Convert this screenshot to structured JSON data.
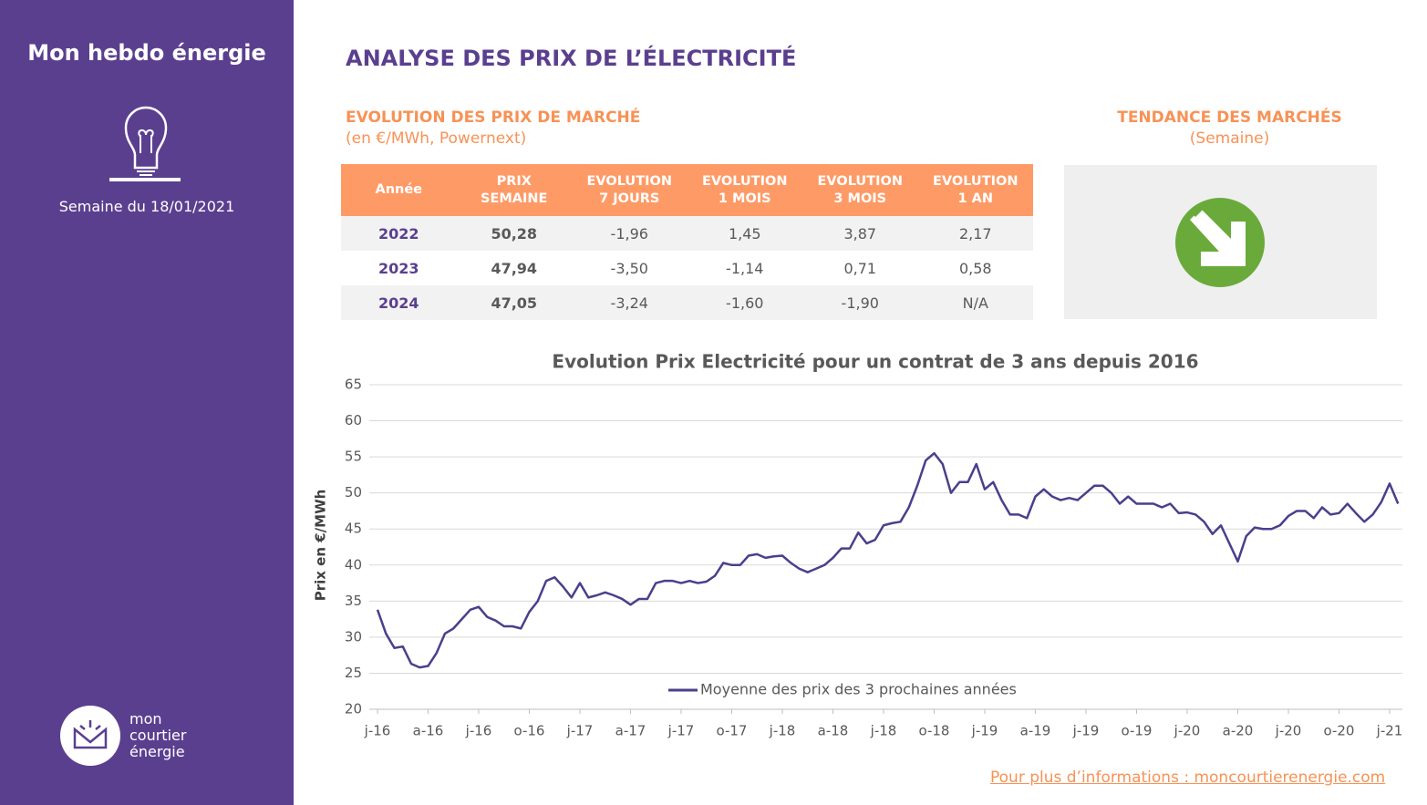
{
  "sidebar": {
    "title": "Mon hebdo énergie",
    "week": "Semaine du 18/01/2021",
    "logo": [
      "mon",
      "courtier",
      "énergie"
    ]
  },
  "header": {
    "title": "ANALYSE DES PRIX DE L’ÉLECTRICITÉ"
  },
  "market": {
    "title": "EVOLUTION DES PRIX DE MARCHÉ",
    "subtitle": "(en €/MWh, Powernext)"
  },
  "table": {
    "columns": [
      "Année",
      "PRIX\nSEMAINE",
      "EVOLUTION\n7 JOURS",
      "EVOLUTION\n1 MOIS",
      "EVOLUTION\n3 MOIS",
      "EVOLUTION\n1 AN"
    ],
    "rows": [
      [
        "2022",
        "50,28",
        "-1,96",
        "1,45",
        "3,87",
        "2,17"
      ],
      [
        "2023",
        "47,94",
        "-3,50",
        "-1,14",
        "0,71",
        "0,58"
      ],
      [
        "2024",
        "47,05",
        "-3,24",
        "-1,60",
        "-1,90",
        "N/A"
      ]
    ]
  },
  "trend": {
    "title": "TENDANCE DES MARCHÉS",
    "subtitle": "(Semaine)"
  },
  "chart_data": {
    "type": "line",
    "title": "Evolution Prix Electricité pour un contrat de 3 ans depuis 2016",
    "y_label": "Prix en €/MWh",
    "categories": [
      "j-16",
      null,
      null,
      null,
      null,
      null,
      "a-16",
      null,
      null,
      null,
      null,
      null,
      "j-16",
      null,
      null,
      null,
      null,
      null,
      "o-16",
      null,
      null,
      null,
      null,
      null,
      "j-17",
      null,
      null,
      null,
      null,
      null,
      "a-17",
      null,
      null,
      null,
      null,
      null,
      "j-17",
      null,
      null,
      null,
      null,
      null,
      "o-17",
      null,
      null,
      null,
      null,
      null,
      "j-18",
      null,
      null,
      null,
      null,
      null,
      "a-18",
      null,
      null,
      null,
      null,
      null,
      "j-18",
      null,
      null,
      null,
      null,
      null,
      "o-18",
      null,
      null,
      null,
      null,
      null,
      "j-19",
      null,
      null,
      null,
      null,
      null,
      "a-19",
      null,
      null,
      null,
      null,
      null,
      "j-19",
      null,
      null,
      null,
      null,
      null,
      "o-19",
      null,
      null,
      null,
      null,
      null,
      "j-20",
      null,
      null,
      null,
      null,
      null,
      "a-20",
      null,
      null,
      null,
      null,
      null,
      "j-20",
      null,
      null,
      null,
      null,
      null,
      "o-20",
      null,
      null,
      null,
      null,
      null,
      "j-21",
      null
    ],
    "series": [
      {
        "name": "Moyenne des prix des 3 prochaines années",
        "color": "#4b3f8c",
        "values": [
          33.8,
          30.5,
          28.5,
          28.7,
          26.3,
          25.8,
          26,
          27.8,
          30.5,
          31.2,
          32.5,
          33.8,
          34.2,
          32.8,
          32.3,
          31.5,
          31.5,
          31.2,
          33.5,
          35,
          37.8,
          38.3,
          37,
          35.5,
          37.5,
          35.5,
          35.8,
          36.2,
          35.8,
          35.3,
          34.5,
          35.3,
          35.3,
          37.5,
          37.8,
          37.8,
          37.5,
          37.8,
          37.5,
          37.7,
          38.5,
          40.3,
          40,
          40,
          41.3,
          41.5,
          41,
          41.2,
          41.3,
          40.3,
          39.5,
          39,
          39.5,
          40,
          41,
          42.3,
          42.3,
          44.5,
          43,
          43.5,
          45.5,
          45.8,
          46,
          48,
          51,
          54.5,
          55.5,
          54,
          50,
          51.5,
          51.5,
          54,
          50.5,
          51.5,
          49,
          47,
          47,
          46.5,
          49.5,
          50.5,
          49.5,
          49,
          49.3,
          49,
          50,
          51,
          51,
          50,
          48.5,
          49.5,
          48.5,
          48.5,
          48.5,
          48,
          48.5,
          47.2,
          47.3,
          47,
          46,
          44.3,
          45.5,
          43,
          40.5,
          44,
          45.2,
          45,
          45,
          45.5,
          46.8,
          47.5,
          47.5,
          46.5,
          48,
          47,
          47.2,
          48.5,
          47.2,
          46,
          47,
          48.7,
          51.3,
          48.5
        ]
      }
    ],
    "ylim": [
      20,
      65
    ],
    "yticks": [
      20,
      25,
      30,
      35,
      40,
      45,
      50,
      55,
      60,
      65
    ],
    "grid": true,
    "legend": "bottom"
  },
  "footer": {
    "link": "Pour plus d’informations : moncourtierenergie.com"
  }
}
